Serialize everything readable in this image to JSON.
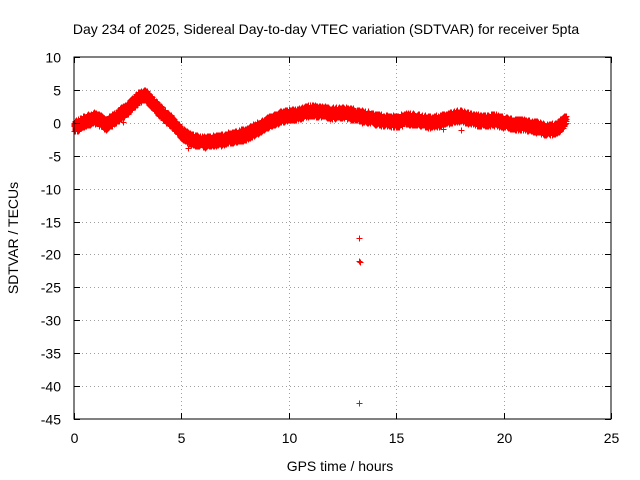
{
  "chart_data": {
    "type": "scatter",
    "title": "Day 234 of 2025, Sidereal Day-to-day VTEC variation (SDTVAR) for receiver 5pta",
    "xlabel": "GPS time / hours",
    "ylabel": "SDTVAR / TECUs",
    "xlim": [
      0,
      25
    ],
    "ylim": [
      -45,
      10
    ],
    "x_ticks": [
      "0",
      "5",
      "10",
      "15",
      "20",
      "25"
    ],
    "y_ticks": [
      "10",
      "5",
      "0",
      "-5",
      "-10",
      "-15",
      "-20",
      "-25",
      "-30",
      "-35",
      "-40",
      "-45"
    ],
    "grid": true,
    "marker": "+",
    "series_color": "#ff0000",
    "trend": {
      "x": [
        0,
        0.5,
        1.0,
        1.5,
        2.0,
        2.5,
        3.0,
        3.3,
        3.6,
        4.0,
        4.5,
        5.0,
        5.5,
        6.0,
        6.5,
        7.0,
        7.5,
        8.0,
        8.5,
        9.0,
        9.5,
        10.0,
        10.5,
        11.0,
        11.5,
        12.0,
        12.5,
        13.0,
        13.5,
        14.0,
        14.5,
        15.0,
        15.5,
        16.0,
        16.5,
        17.0,
        17.5,
        18.0,
        18.5,
        19.0,
        19.5,
        20.0,
        20.5,
        21.0,
        21.5,
        22.0,
        22.5,
        22.9
      ],
      "y": [
        -0.6,
        0.3,
        0.8,
        -0.2,
        1.0,
        2.2,
        3.8,
        4.3,
        3.2,
        1.8,
        0.3,
        -1.6,
        -2.6,
        -2.9,
        -2.7,
        -2.5,
        -2.1,
        -1.7,
        -0.9,
        0.0,
        0.8,
        1.2,
        1.4,
        1.9,
        1.7,
        1.5,
        1.6,
        1.3,
        1.0,
        0.6,
        0.3,
        0.2,
        0.6,
        0.5,
        0.1,
        0.3,
        0.8,
        1.1,
        0.6,
        0.3,
        0.5,
        0.1,
        -0.2,
        -0.3,
        -0.6,
        -1.1,
        -0.7,
        0.5
      ]
    },
    "spread": 0.9,
    "outliers": [
      {
        "x": 13.25,
        "y": -17.5
      },
      {
        "x": 13.25,
        "y": -21.0
      },
      {
        "x": 13.3,
        "y": -21.2
      },
      {
        "x": 13.25,
        "y": -42.6
      },
      {
        "x": 13.4,
        "y": 0.0
      },
      {
        "x": 16.5,
        "y": -0.8
      },
      {
        "x": 17.2,
        "y": -0.9
      },
      {
        "x": 18.0,
        "y": -1.1
      },
      {
        "x": 5.3,
        "y": -3.8
      },
      {
        "x": 2.3,
        "y": 0.2
      }
    ]
  }
}
